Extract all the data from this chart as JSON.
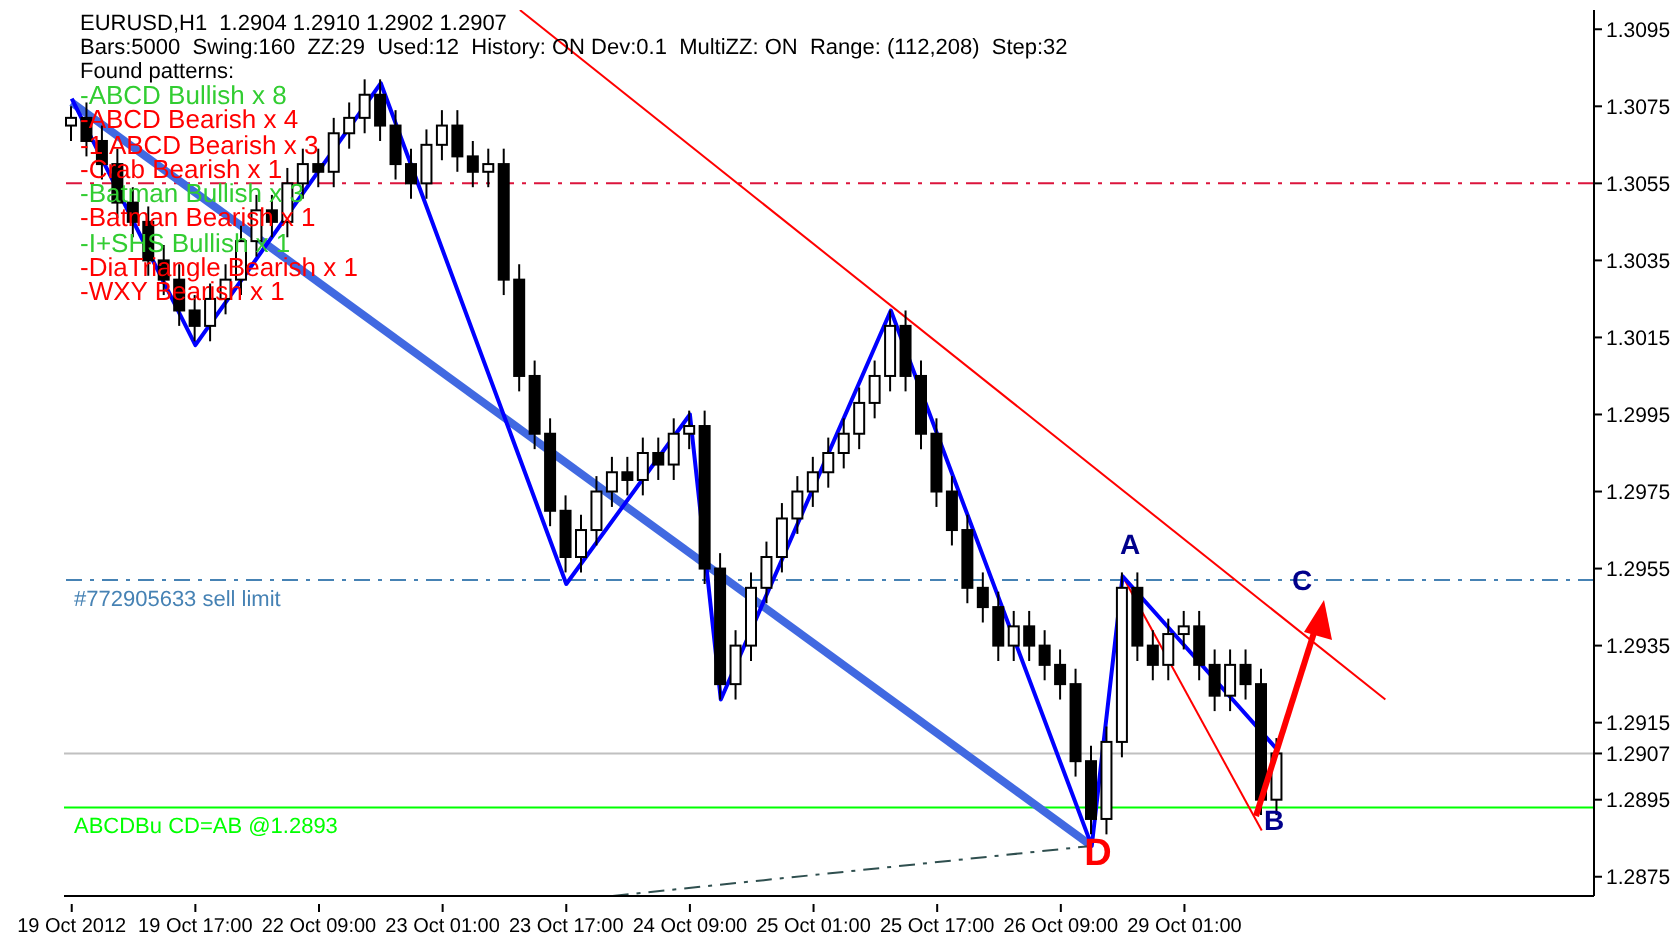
{
  "chart_data": {
    "type": "candlestick",
    "title": "EURUSD,H1  1.2904 1.2910 1.2902 1.2907",
    "subtitle": "Bars:5000  Swing:160  ZZ:29  Used:12  History: ON Dev:0.1  MultiZZ: ON  Range: (112,208)  Step:32",
    "categories": [
      "19 Oct 2012",
      null,
      null,
      null,
      null,
      null,
      null,
      null,
      "19 Oct 17:00",
      null,
      null,
      null,
      null,
      null,
      null,
      null,
      "22 Oct 09:00",
      null,
      null,
      null,
      null,
      null,
      null,
      null,
      "23 Oct 01:00",
      null,
      null,
      null,
      null,
      null,
      null,
      null,
      "23 Oct 17:00",
      null,
      null,
      null,
      null,
      null,
      null,
      null,
      "24 Oct 09:00",
      null,
      null,
      null,
      null,
      null,
      null,
      null,
      "25 Oct 01:00",
      null,
      null,
      null,
      null,
      null,
      null,
      null,
      "25 Oct 17:00",
      null,
      null,
      null,
      null,
      null,
      null,
      null,
      "26 Oct 09:00",
      null,
      null,
      null,
      null,
      null,
      null,
      null,
      "29 Oct 01:00",
      null,
      null,
      null,
      null,
      null,
      null,
      null,
      null,
      null,
      null,
      null,
      null,
      null,
      null,
      null,
      null,
      null,
      null,
      null,
      null,
      null,
      null,
      null,
      null,
      null,
      null
    ],
    "ohlc": [
      [
        1.307,
        1.3075,
        1.3066,
        1.3072
      ],
      [
        1.3072,
        1.3076,
        1.3062,
        1.3066
      ],
      [
        1.3066,
        1.307,
        1.3056,
        1.306
      ],
      [
        1.306,
        1.3064,
        1.3046,
        1.305
      ],
      [
        1.305,
        1.3054,
        1.3041,
        1.3045
      ],
      [
        1.3045,
        1.3049,
        1.3031,
        1.3035
      ],
      [
        1.3035,
        1.3039,
        1.3026,
        1.303
      ],
      [
        1.303,
        1.3034,
        1.3018,
        1.3022
      ],
      [
        1.3022,
        1.3026,
        1.3014,
        1.3018
      ],
      [
        1.3018,
        1.3029,
        1.3014,
        1.3025
      ],
      [
        1.3025,
        1.3034,
        1.3021,
        1.303
      ],
      [
        1.303,
        1.3044,
        1.3026,
        1.304
      ],
      [
        1.304,
        1.3052,
        1.3036,
        1.3048
      ],
      [
        1.3048,
        1.3052,
        1.3041,
        1.3045
      ],
      [
        1.3045,
        1.3059,
        1.3041,
        1.3055
      ],
      [
        1.3055,
        1.3064,
        1.3051,
        1.306
      ],
      [
        1.306,
        1.3064,
        1.3054,
        1.3058
      ],
      [
        1.3058,
        1.3072,
        1.3054,
        1.3068
      ],
      [
        1.3068,
        1.3076,
        1.3064,
        1.3072
      ],
      [
        1.3072,
        1.3082,
        1.3068,
        1.3078
      ],
      [
        1.3078,
        1.3082,
        1.3066,
        1.307
      ],
      [
        1.307,
        1.3074,
        1.3056,
        1.306
      ],
      [
        1.306,
        1.3064,
        1.3051,
        1.3055
      ],
      [
        1.3055,
        1.3069,
        1.3051,
        1.3065
      ],
      [
        1.3065,
        1.3074,
        1.3061,
        1.307
      ],
      [
        1.307,
        1.3074,
        1.3058,
        1.3062
      ],
      [
        1.3062,
        1.3066,
        1.3054,
        1.3058
      ],
      [
        1.3058,
        1.3064,
        1.3054,
        1.306
      ],
      [
        1.306,
        1.3064,
        1.3026,
        1.303
      ],
      [
        1.303,
        1.3034,
        1.3001,
        1.3005
      ],
      [
        1.3005,
        1.3009,
        1.2986,
        1.299
      ],
      [
        1.299,
        1.2994,
        1.2966,
        1.297
      ],
      [
        1.297,
        1.2974,
        1.2954,
        1.2958
      ],
      [
        1.2958,
        1.2969,
        1.2954,
        1.2965
      ],
      [
        1.2965,
        1.2979,
        1.2961,
        1.2975
      ],
      [
        1.2975,
        1.2984,
        1.2971,
        1.298
      ],
      [
        1.298,
        1.2984,
        1.2974,
        1.2978
      ],
      [
        1.2978,
        1.2989,
        1.2974,
        1.2985
      ],
      [
        1.2985,
        1.2989,
        1.2978,
        1.2982
      ],
      [
        1.2982,
        1.2994,
        1.2978,
        1.299
      ],
      [
        1.299,
        1.2996,
        1.2986,
        1.2992
      ],
      [
        1.2992,
        1.2996,
        1.2951,
        1.2955
      ],
      [
        1.2955,
        1.2959,
        1.2921,
        1.2925
      ],
      [
        1.2925,
        1.2939,
        1.2921,
        1.2935
      ],
      [
        1.2935,
        1.2954,
        1.2931,
        1.295
      ],
      [
        1.295,
        1.2962,
        1.2946,
        1.2958
      ],
      [
        1.2958,
        1.2972,
        1.2954,
        1.2968
      ],
      [
        1.2968,
        1.2979,
        1.2964,
        1.2975
      ],
      [
        1.2975,
        1.2984,
        1.2971,
        1.298
      ],
      [
        1.298,
        1.2989,
        1.2976,
        1.2985
      ],
      [
        1.2985,
        1.2994,
        1.2981,
        1.299
      ],
      [
        1.299,
        1.3002,
        1.2986,
        1.2998
      ],
      [
        1.2998,
        1.3009,
        1.2994,
        1.3005
      ],
      [
        1.3005,
        1.3022,
        1.3001,
        1.3018
      ],
      [
        1.3018,
        1.3022,
        1.3001,
        1.3005
      ],
      [
        1.3005,
        1.3009,
        1.2986,
        1.299
      ],
      [
        1.299,
        1.2994,
        1.2971,
        1.2975
      ],
      [
        1.2975,
        1.2979,
        1.2961,
        1.2965
      ],
      [
        1.2965,
        1.2969,
        1.2946,
        1.295
      ],
      [
        1.295,
        1.2954,
        1.2941,
        1.2945
      ],
      [
        1.2945,
        1.2949,
        1.2931,
        1.2935
      ],
      [
        1.2935,
        1.2944,
        1.2931,
        1.294
      ],
      [
        1.294,
        1.2944,
        1.2931,
        1.2935
      ],
      [
        1.2935,
        1.2939,
        1.2926,
        1.293
      ],
      [
        1.293,
        1.2934,
        1.2921,
        1.2925
      ],
      [
        1.2925,
        1.2929,
        1.2901,
        1.2905
      ],
      [
        1.2905,
        1.2909,
        1.2886,
        1.289
      ],
      [
        1.289,
        1.2914,
        1.2886,
        1.291
      ],
      [
        1.291,
        1.2954,
        1.2906,
        1.295
      ],
      [
        1.295,
        1.2954,
        1.2931,
        1.2935
      ],
      [
        1.2935,
        1.2939,
        1.2926,
        1.293
      ],
      [
        1.293,
        1.2942,
        1.2926,
        1.2938
      ],
      [
        1.2938,
        1.2944,
        1.2934,
        1.294
      ],
      [
        1.294,
        1.2944,
        1.2926,
        1.293
      ],
      [
        1.293,
        1.2934,
        1.2918,
        1.2922
      ],
      [
        1.2922,
        1.2934,
        1.2918,
        1.293
      ],
      [
        1.293,
        1.2934,
        1.2921,
        1.2925
      ],
      [
        1.2925,
        1.2929,
        1.2891,
        1.2895
      ],
      [
        1.2895,
        1.2911,
        1.2891,
        1.2907
      ],
      null,
      null,
      null,
      null,
      null,
      null,
      null,
      null,
      null,
      null,
      null,
      null,
      null,
      null,
      null,
      null,
      null,
      null,
      null,
      null
    ],
    "series": [
      {
        "type": "line",
        "color": "#4169e1",
        "values": [
          1.3076,
          null,
          null,
          null,
          null,
          null,
          null,
          null,
          null,
          null,
          null,
          null,
          null,
          null,
          null,
          null,
          null,
          null,
          null,
          null,
          null,
          null,
          null,
          null,
          null,
          null,
          null,
          null,
          null,
          null,
          null,
          null,
          null,
          null,
          null,
          null,
          null,
          null,
          null,
          null,
          null,
          null,
          null,
          null,
          null,
          null,
          null,
          null,
          null,
          null,
          null,
          null,
          null,
          null,
          null,
          null,
          null,
          null,
          null,
          null,
          null,
          null,
          null,
          null,
          null,
          null,
          1.2883,
          null,
          null,
          null,
          null,
          null,
          null,
          null,
          null,
          null,
          null,
          null,
          null,
          null,
          null,
          null,
          null,
          null,
          null,
          null,
          null,
          null,
          null,
          null,
          null,
          null,
          null,
          null,
          null,
          null,
          null,
          null,
          null
        ]
      },
      {
        "type": "line",
        "color": "#ff0000",
        "values": [
          null,
          null,
          null,
          null,
          null,
          null,
          null,
          null,
          null,
          null,
          null,
          null,
          null,
          null,
          null,
          null,
          null,
          null,
          null,
          null,
          null,
          null,
          null,
          null,
          null,
          null,
          null,
          null,
          null,
          1.31,
          null,
          null,
          null,
          null,
          null,
          null,
          null,
          null,
          null,
          null,
          null,
          null,
          null,
          null,
          null,
          null,
          null,
          null,
          null,
          null,
          null,
          null,
          null,
          null,
          null,
          null,
          null,
          null,
          null,
          null,
          null,
          null,
          null,
          null,
          null,
          null,
          null,
          null,
          null,
          null,
          null,
          null,
          null,
          null,
          null,
          null,
          null,
          null,
          null,
          null,
          null,
          null,
          null,
          null,
          null,
          1.2921,
          null,
          null,
          null,
          null,
          null,
          null,
          null,
          null,
          null,
          null,
          null,
          null,
          null
        ]
      },
      {
        "type": "line",
        "color": "#2f4f4f",
        "line_style": "dashed",
        "values": [
          null,
          null,
          null,
          null,
          null,
          null,
          null,
          null,
          null,
          null,
          null,
          null,
          null,
          null,
          null,
          null,
          null,
          null,
          null,
          null,
          null,
          null,
          null,
          null,
          null,
          null,
          null,
          null,
          null,
          null,
          null,
          null,
          null,
          null,
          null,
          1.287,
          null,
          null,
          null,
          null,
          null,
          null,
          null,
          null,
          null,
          null,
          null,
          null,
          null,
          null,
          null,
          null,
          null,
          null,
          null,
          null,
          null,
          null,
          null,
          null,
          null,
          null,
          null,
          null,
          null,
          null,
          1.2883,
          null,
          null,
          null,
          null,
          null,
          null,
          null,
          null,
          null,
          null,
          null,
          null,
          null,
          null,
          null,
          null,
          null,
          null,
          null,
          null,
          null,
          null,
          null,
          null,
          null,
          null,
          null,
          null,
          null,
          null,
          null,
          null
        ]
      },
      {
        "type": "line",
        "color": "#ff0000",
        "values": [
          null,
          null,
          null,
          null,
          null,
          null,
          null,
          null,
          null,
          null,
          null,
          null,
          null,
          null,
          null,
          null,
          null,
          null,
          null,
          null,
          null,
          null,
          null,
          null,
          null,
          null,
          null,
          null,
          null,
          null,
          null,
          null,
          null,
          null,
          null,
          null,
          null,
          null,
          null,
          null,
          null,
          null,
          null,
          null,
          null,
          null,
          null,
          null,
          null,
          null,
          null,
          null,
          null,
          null,
          null,
          null,
          null,
          null,
          null,
          null,
          null,
          null,
          null,
          null,
          null,
          null,
          null,
          null,
          1.2953,
          null,
          null,
          null,
          null,
          null,
          null,
          null,
          null,
          1.2887,
          null,
          null,
          null,
          null,
          null,
          null,
          null,
          null,
          null,
          null,
          null,
          null,
          null,
          null,
          null,
          null,
          null,
          null,
          null,
          null,
          null
        ]
      },
      {
        "type": "line",
        "color": "#0000ff",
        "values": [
          1.3077,
          null,
          null,
          null,
          null,
          null,
          null,
          null,
          1.3013,
          null,
          null,
          null,
          null,
          null,
          null,
          null,
          null,
          null,
          null,
          null,
          1.3081,
          null,
          null,
          null,
          null,
          null,
          null,
          null,
          null,
          null,
          null,
          null,
          1.2951,
          null,
          null,
          null,
          null,
          null,
          null,
          null,
          1.2995,
          null,
          1.2921,
          null,
          null,
          null,
          null,
          null,
          null,
          null,
          null,
          null,
          null,
          1.3022,
          null,
          null,
          null,
          null,
          null,
          null,
          null,
          null,
          null,
          null,
          null,
          null,
          1.2883,
          null,
          1.2953,
          null,
          null,
          null,
          null,
          null,
          null,
          null,
          null,
          null,
          1.2908,
          null,
          null,
          null,
          null,
          null,
          null,
          null,
          null,
          null,
          null,
          null,
          null,
          null,
          null,
          null,
          null,
          null,
          null,
          null,
          null
        ]
      }
    ],
    "ylim": [
      1.287,
      1.31
    ],
    "yticks": [
      1.2875,
      1.2895,
      1.2907,
      1.2915,
      1.2935,
      1.2955,
      1.2975,
      1.2995,
      1.3015,
      1.3035,
      1.3055,
      1.3075,
      1.3095
    ],
    "ref_lines": [
      {
        "axis": "y",
        "value": 1.3055,
        "color": "#dc143c",
        "line_style": "dashed"
      },
      {
        "axis": "y",
        "value": 1.2952,
        "color": "#4682b4",
        "line_style": "dashed",
        "label": "#772905633 sell limit"
      },
      {
        "axis": "y",
        "value": 1.2907,
        "color": "#c0c0c0",
        "line_style": "solid"
      },
      {
        "axis": "y",
        "value": 1.2893,
        "color": "#00ff00",
        "line_style": "solid",
        "label": "ABCDBu CD=AB   @1.2893"
      }
    ],
    "annotations": [
      "Found patterns:",
      "-ABCD Bullish x 8",
      "-ABCD Bearish x 4",
      "-1 ABCD Bearish x 3",
      "-Crab Bearish x 1",
      "-Batman Bullish x 3",
      "-Batman Bearish x 1",
      "-I+SHS Bullish x 1",
      "-DiaTriangle Bearish x 1",
      "-WXY Bearish x 1",
      "A",
      "B",
      {
        "text": "C",
        "y": 1.2952
      },
      "D"
    ],
    "grid": false,
    "legend": false
  }
}
